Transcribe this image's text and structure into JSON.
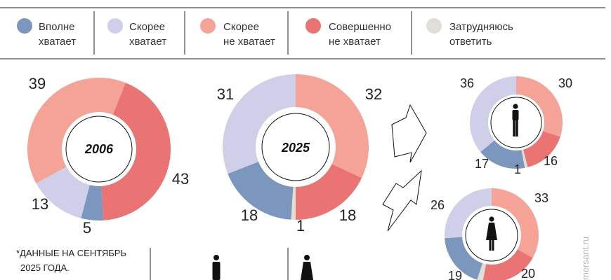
{
  "colors": {
    "fully_enough": "#7b97bd",
    "rather_enough": "#cfcfe9",
    "rather_not_enough": "#f4a396",
    "not_enough_at_all": "#ea7373",
    "hard_to_say": "#e1ddd7"
  },
  "legend": [
    {
      "key": "fully_enough",
      "line1": "Вполне",
      "line2": "хватает"
    },
    {
      "key": "rather_enough",
      "line1": "Скорее",
      "line2": "хватает"
    },
    {
      "key": "rather_not_enough",
      "line1": "Скорее",
      "line2": "не хватает"
    },
    {
      "key": "not_enough_at_all",
      "line1": "Совершенно",
      "line2": "не хватает"
    },
    {
      "key": "hard_to_say",
      "line1": "Затрудняюсь",
      "line2": "ответить"
    }
  ],
  "footnote": {
    "line1": "*ДАННЫЕ НА СЕНТЯБРЬ",
    "line2": "2025 ГОДА."
  },
  "watermark": "mersant.ru",
  "chart_data": [
    {
      "type": "pie",
      "title": "2006",
      "categories": [
        "Вполне хватает",
        "Скорее хватает",
        "Скорее не хватает",
        "Совершенно не хватает",
        "Затрудняюсь ответить"
      ],
      "values": [
        5,
        13,
        39,
        43,
        0
      ],
      "labels": [
        "5",
        "13",
        "39",
        "43",
        ""
      ]
    },
    {
      "type": "pie",
      "title": "2025",
      "categories": [
        "Вполне хватает",
        "Скорее хватает",
        "Скорее не хватает",
        "Совершенно не хватает",
        "Затрудняюсь ответить"
      ],
      "values": [
        18,
        31,
        32,
        18,
        1
      ],
      "labels": [
        "18",
        "31",
        "32",
        "18",
        "1"
      ]
    },
    {
      "type": "pie",
      "title": "",
      "categories": [
        "Вполне хватает",
        "Скорее хватает",
        "Скорее не хватает",
        "Совершенно не хватает",
        "Затрудняюсь ответить"
      ],
      "values": [
        17,
        36,
        30,
        16,
        1
      ],
      "labels": [
        "17",
        "36",
        "30",
        "16",
        "1"
      ]
    },
    {
      "type": "pie",
      "title": "",
      "categories": [
        "Вполне хватает",
        "Скорее хватает",
        "Скорее не хватает",
        "Совершенно не хватает",
        "Затрудняюсь ответить"
      ],
      "values": [
        19,
        26,
        33,
        20,
        2
      ],
      "labels": [
        "19",
        "26",
        "33",
        "20",
        ""
      ]
    }
  ]
}
